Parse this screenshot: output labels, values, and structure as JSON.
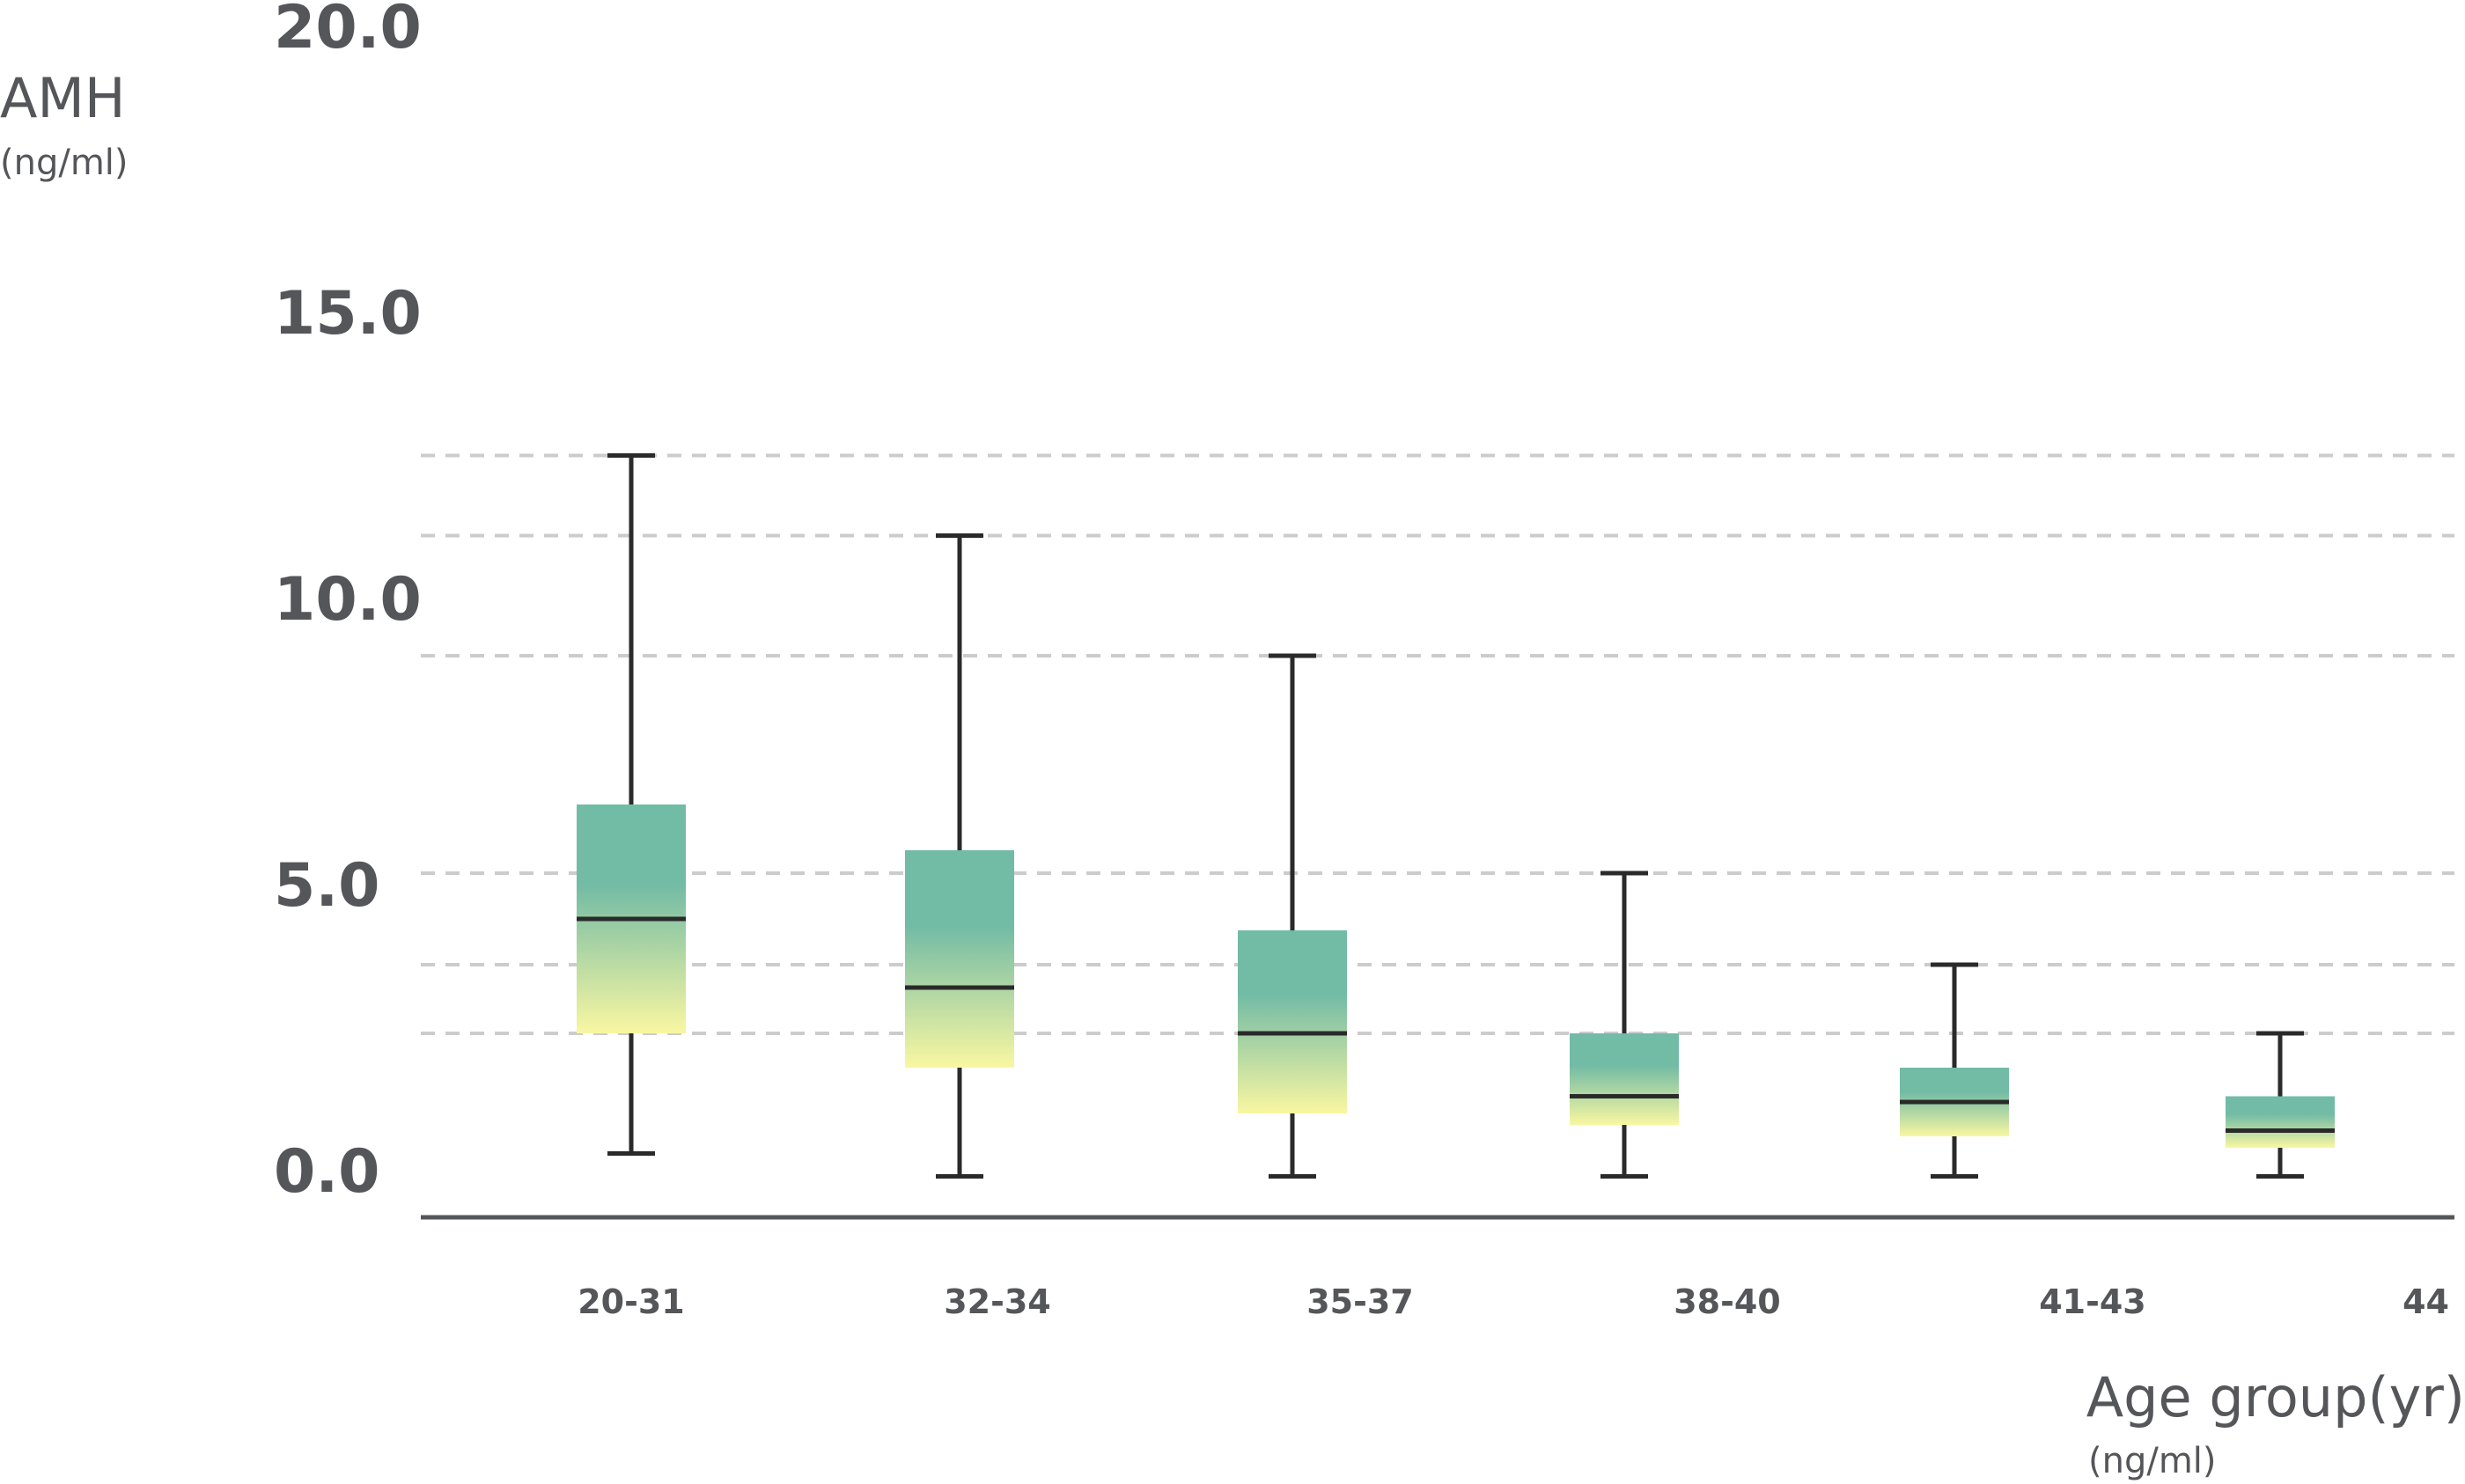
{
  "chart_data": {
    "type": "box",
    "ylabel": "AMH",
    "yunit": "(ng/ml)",
    "xlabel": "Age group(yr)",
    "xunit": "(ng/ml)",
    "ylim": [
      0,
      20
    ],
    "yticks": [
      "0.0",
      "5.0",
      "10.0",
      "15.0",
      "20.0"
    ],
    "ytick_values": [
      0,
      5,
      10,
      15,
      20
    ],
    "gridlines": [
      12.5,
      11.1,
      9.0,
      5.2,
      3.6,
      2.4
    ],
    "grid_style": "dashed",
    "colors": {
      "box_top": "#72bba5",
      "box_bottom": "#f9f7a2",
      "whisker": "#2a2a2a",
      "axis": "#555659",
      "grid": "#cccccc",
      "text": "#555659"
    },
    "categories": [
      "20-31",
      "32-34",
      "35-37",
      "38-40",
      "41-43",
      "44"
    ],
    "boxes": [
      {
        "min": 0.3,
        "q1": 2.4,
        "median": 4.4,
        "q3": 6.4,
        "max": 12.5
      },
      {
        "min": -0.1,
        "q1": 1.8,
        "median": 3.2,
        "q3": 5.6,
        "max": 11.1
      },
      {
        "min": -0.1,
        "q1": 1.0,
        "median": 2.4,
        "q3": 4.2,
        "max": 9.0
      },
      {
        "min": -0.1,
        "q1": 0.8,
        "median": 1.3,
        "q3": 2.4,
        "max": 5.2
      },
      {
        "min": -0.1,
        "q1": 0.6,
        "median": 1.2,
        "q3": 1.8,
        "max": 3.6
      },
      {
        "min": -0.1,
        "q1": 0.4,
        "median": 0.7,
        "q3": 1.3,
        "max": 2.4
      }
    ]
  }
}
